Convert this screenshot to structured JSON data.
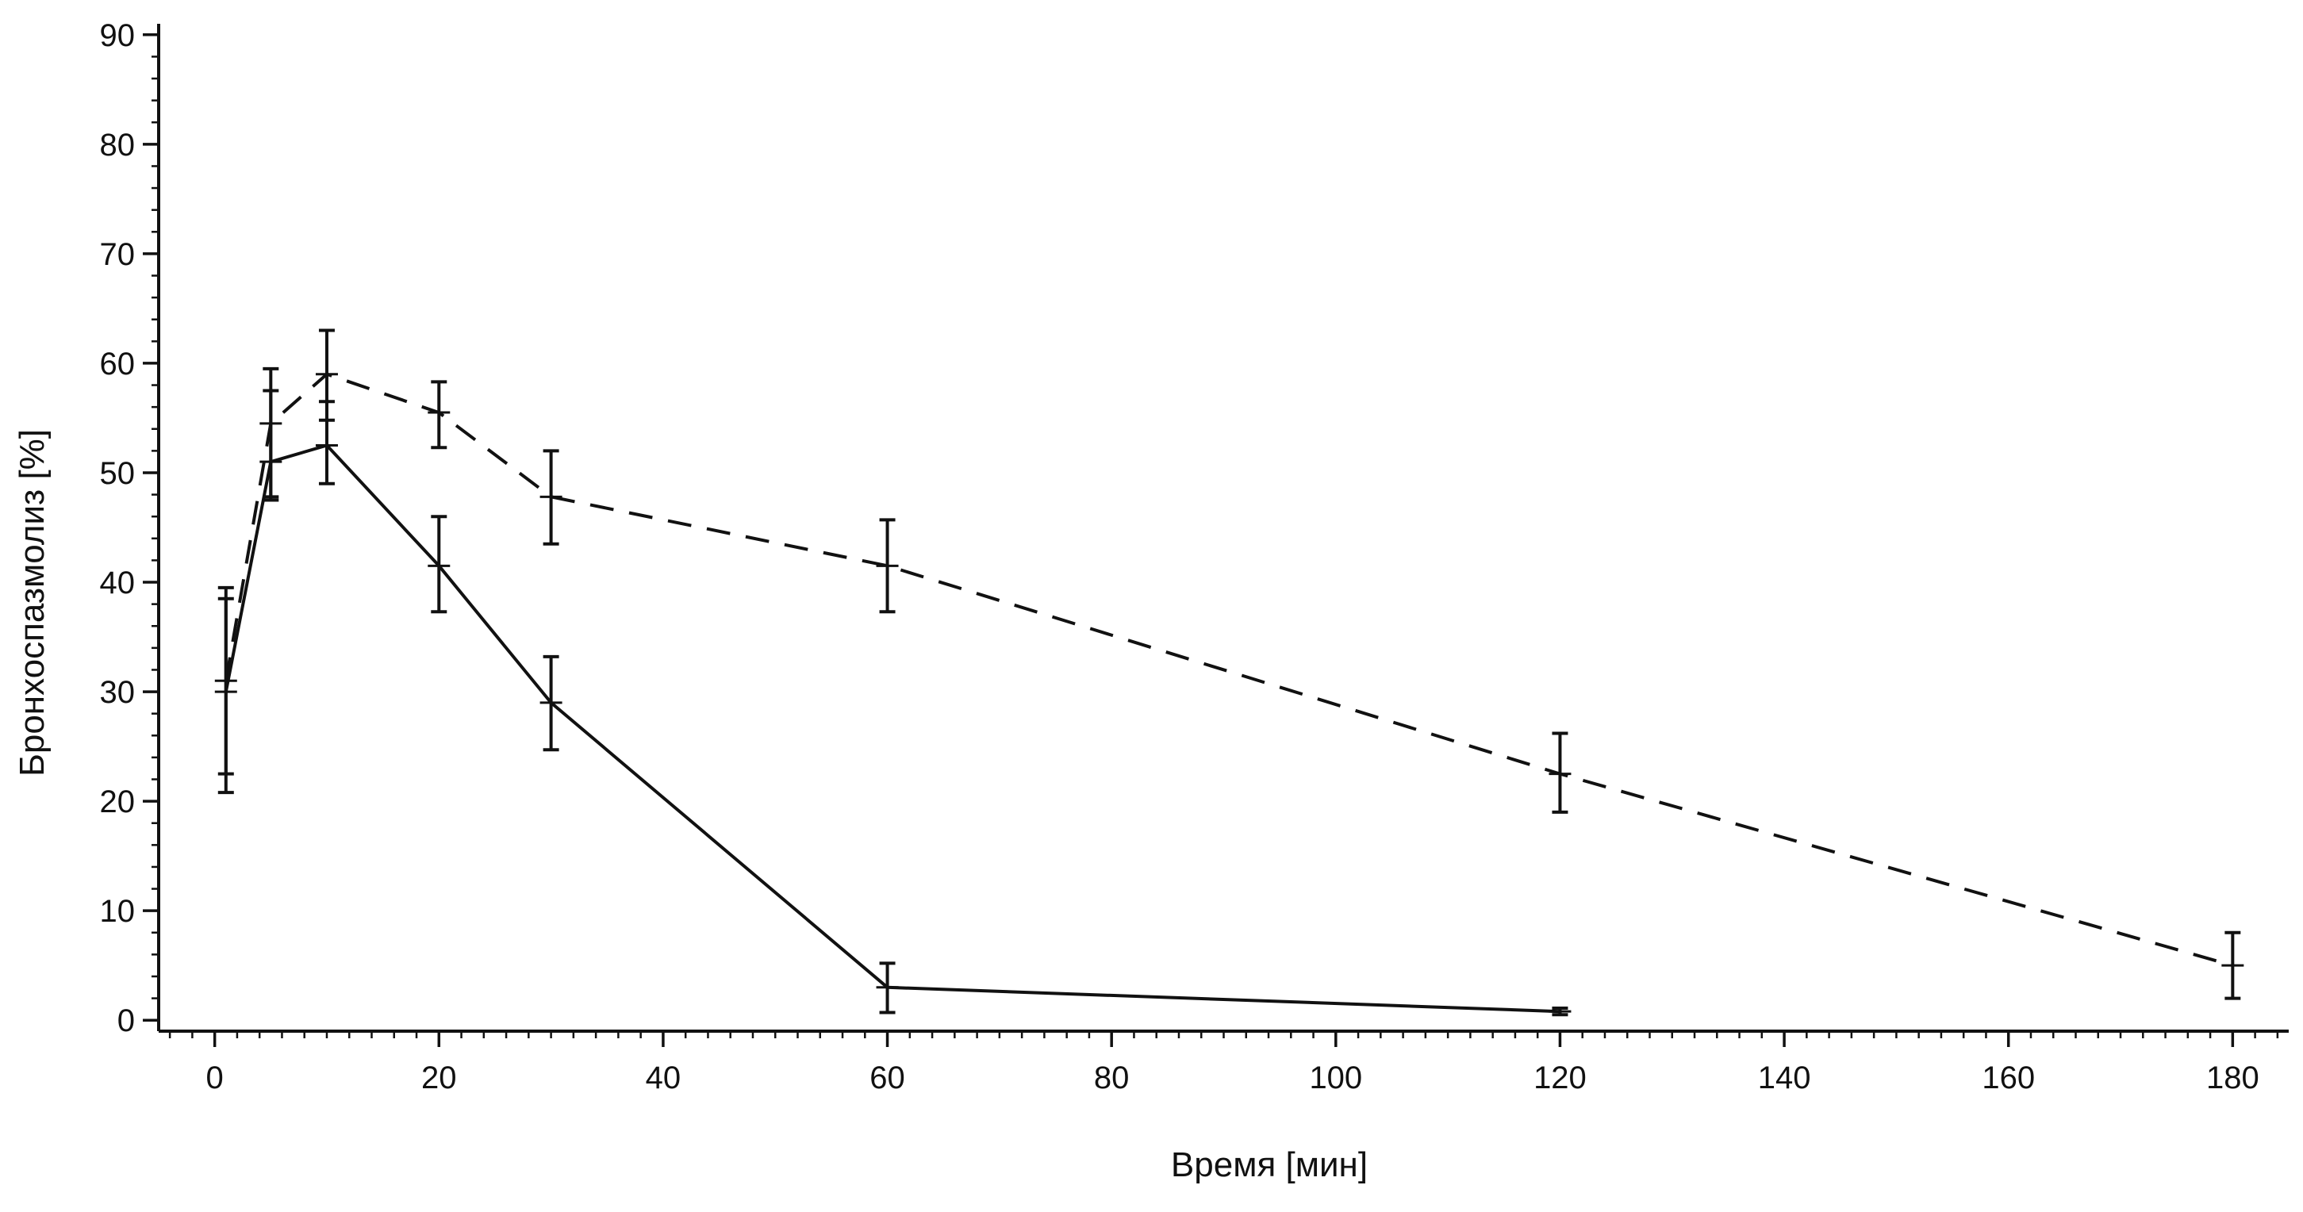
{
  "chart_data": {
    "type": "line",
    "xlabel": "Время [мин]",
    "ylabel": "Бронхоспазмолиз [%]",
    "xlim": [
      -5,
      185
    ],
    "ylim": [
      -1,
      91
    ],
    "xticks": [
      0,
      20,
      40,
      60,
      80,
      100,
      120,
      140,
      160,
      180
    ],
    "yticks": [
      0,
      10,
      20,
      30,
      40,
      50,
      60,
      70,
      80,
      90
    ],
    "xtick_labels": [
      "0",
      "20",
      "40",
      "60",
      "80",
      "100",
      "120",
      "140",
      "160",
      "180"
    ],
    "ytick_labels": [
      "0",
      "10",
      "20",
      "30",
      "40",
      "50",
      "60",
      "70",
      "80",
      "90"
    ],
    "x_minor_step": 2,
    "y_minor_step": 2,
    "grid": false,
    "legend": "none",
    "series": [
      {
        "style": "dashed",
        "color": "#111111",
        "points": [
          {
            "x": 1,
            "y": 31,
            "err_low": 22.5,
            "err_high": 39.5
          },
          {
            "x": 5,
            "y": 54.5,
            "err_low": 47.8,
            "err_high": 59.5
          },
          {
            "x": 10,
            "y": 59,
            "err_low": 54.8,
            "err_high": 63
          },
          {
            "x": 20,
            "y": 55.5,
            "err_low": 52.3,
            "err_high": 58.3
          },
          {
            "x": 30,
            "y": 47.8,
            "err_low": 43.5,
            "err_high": 52
          },
          {
            "x": 60,
            "y": 41.5,
            "err_low": 37.3,
            "err_high": 45.7
          },
          {
            "x": 120,
            "y": 22.5,
            "err_low": 19,
            "err_high": 26.2
          },
          {
            "x": 180,
            "y": 5,
            "err_low": 2,
            "err_high": 8
          }
        ]
      },
      {
        "style": "solid",
        "color": "#111111",
        "points": [
          {
            "x": 1,
            "y": 30,
            "err_low": 20.8,
            "err_high": 38.5
          },
          {
            "x": 5,
            "y": 51,
            "err_low": 47.5,
            "err_high": 57.5
          },
          {
            "x": 10,
            "y": 52.5,
            "err_low": 49,
            "err_high": 56.5
          },
          {
            "x": 20,
            "y": 41.5,
            "err_low": 37.3,
            "err_high": 46
          },
          {
            "x": 30,
            "y": 29,
            "err_low": 24.7,
            "err_high": 33.2
          },
          {
            "x": 60,
            "y": 3,
            "err_low": 0.7,
            "err_high": 5.2
          },
          {
            "x": 120,
            "y": 0.8,
            "err_low": 0.5,
            "err_high": 1.1
          }
        ]
      }
    ]
  }
}
